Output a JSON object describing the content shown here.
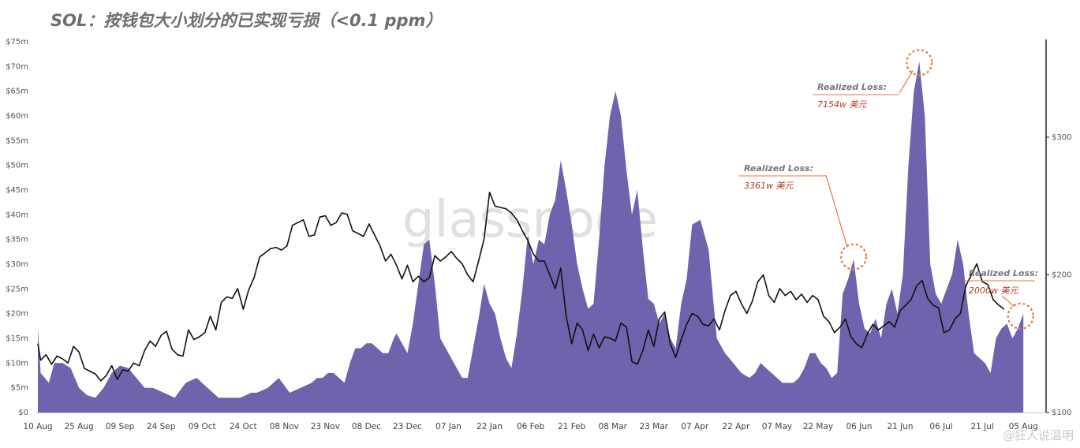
{
  "title": "SOL：按钱包大小划分的已实现亏损（<0.1 ppm）",
  "watermark": "glassnode",
  "corner_watermark": "@狂人说温明",
  "colors": {
    "area": "#6f63ad",
    "line": "#111111",
    "highlight": "#e8793a",
    "annotation_value": "#b03a1e"
  },
  "chart_data": {
    "type": "area",
    "title": "SOL：按钱包大小划分的已实现亏损（<0.1 ppm）",
    "x_tick_labels": [
      "10 Aug",
      "25 Aug",
      "09 Sep",
      "24 Sep",
      "09 Oct",
      "24 Oct",
      "08 Nov",
      "23 Nov",
      "08 Dec",
      "23 Dec",
      "07 Jan",
      "22 Jan",
      "06 Feb",
      "21 Feb",
      "08 Mar",
      "23 Mar",
      "07 Apr",
      "22 Apr",
      "07 May",
      "22 May",
      "06 Jun",
      "21 Jun",
      "06 Jul",
      "21 Jul",
      "05 Aug"
    ],
    "y_left_ticks": [
      "$0",
      "$5m",
      "$10m",
      "$15m",
      "$20m",
      "$25m",
      "$30m",
      "$35m",
      "$40m",
      "$45m",
      "$50m",
      "$55m",
      "$60m",
      "$65m",
      "$70m",
      "$75m"
    ],
    "y_left_range": [
      0,
      75
    ],
    "y_left_unit": "$m",
    "y_right_ticks": [
      "$100",
      "$200",
      "$300"
    ],
    "y_right_range": [
      100,
      300
    ],
    "grid": false,
    "series": [
      {
        "type": "area",
        "axis": "left",
        "day_offset": [
          0,
          1,
          4,
          6,
          9,
          12,
          15,
          18,
          21,
          24,
          27,
          30,
          33,
          36,
          39,
          42,
          46,
          50,
          54,
          58,
          62,
          66,
          70,
          74,
          78,
          80,
          84,
          88,
          92,
          96,
          100,
          102,
          104,
          106,
          108,
          110,
          112,
          114,
          116,
          118,
          120,
          122,
          124,
          126,
          128,
          130,
          131,
          133,
          135,
          137,
          139,
          141,
          143,
          145,
          147,
          149,
          151,
          153,
          155,
          157,
          159,
          161,
          163,
          165,
          167,
          169,
          171,
          173,
          175,
          177,
          179,
          181,
          183,
          185,
          187,
          189,
          191,
          193,
          195,
          197,
          199,
          201,
          203,
          205,
          207,
          209,
          211,
          213,
          215,
          217,
          219,
          221,
          223,
          225,
          227,
          229,
          231,
          233,
          235,
          237,
          239,
          242,
          245,
          248,
          251,
          254,
          257,
          260,
          262,
          264,
          266,
          268,
          270,
          272,
          274,
          276,
          278,
          280,
          282,
          284,
          286,
          288,
          290,
          292,
          294,
          296,
          298,
          300,
          302,
          304,
          306,
          308,
          310,
          312,
          314,
          316,
          318,
          320,
          322,
          324,
          326,
          328,
          330,
          332,
          334,
          336,
          338,
          340,
          342,
          344,
          346,
          348,
          350,
          352,
          354,
          356,
          358,
          360
        ],
        "values": [
          17,
          8,
          6,
          10,
          10,
          9,
          5,
          3.5,
          3,
          5,
          8,
          9.5,
          9,
          7,
          5,
          5,
          4,
          3,
          6,
          7,
          5,
          3,
          3,
          3,
          4,
          4,
          5,
          7,
          4,
          5,
          6,
          7,
          7,
          8,
          8,
          7,
          6,
          10,
          13,
          13,
          14,
          14,
          13,
          12,
          12,
          15,
          16,
          14,
          12,
          18,
          26,
          34,
          35,
          26,
          15,
          13,
          11,
          9,
          7,
          7,
          13,
          19,
          26,
          22,
          20,
          15,
          11,
          9,
          16,
          25,
          36,
          30,
          35,
          34,
          40,
          43,
          51,
          45,
          38,
          30,
          25,
          21,
          22,
          35,
          50,
          60,
          65,
          60,
          49,
          40,
          45,
          33,
          23,
          22,
          18,
          20,
          15,
          13,
          22,
          27,
          38,
          39,
          33,
          15,
          12,
          10,
          8,
          7,
          8,
          10,
          9,
          8,
          7,
          6,
          6,
          6,
          7,
          9,
          12,
          12,
          10,
          9,
          7,
          8,
          24,
          27,
          31,
          22,
          17,
          16,
          19,
          15,
          22,
          25,
          20,
          28,
          50,
          65,
          71,
          60,
          30,
          24,
          22,
          25,
          28,
          35,
          30,
          20,
          12,
          11,
          10,
          8,
          15,
          17,
          18,
          15,
          17,
          20,
          19,
          16,
          10
        ]
      },
      {
        "type": "line",
        "axis": "right",
        "day_offset": [
          0,
          1,
          3,
          5,
          7,
          9,
          11,
          13,
          15,
          17,
          19,
          21,
          23,
          25,
          27,
          29,
          31,
          33,
          35,
          37,
          39,
          41,
          43,
          45,
          47,
          49,
          51,
          53,
          55,
          57,
          59,
          61,
          63,
          65,
          67,
          69,
          71,
          73,
          75,
          77,
          79,
          81,
          83,
          85,
          87,
          89,
          91,
          93,
          95,
          97,
          99,
          101,
          103,
          105,
          107,
          109,
          111,
          113,
          115,
          117,
          119,
          121,
          123,
          125,
          127,
          129,
          131,
          133,
          135,
          137,
          139,
          141,
          143,
          145,
          147,
          149,
          151,
          153,
          155,
          157,
          159,
          161,
          163,
          165,
          167,
          169,
          171,
          173,
          175,
          177,
          179,
          181,
          183,
          185,
          187,
          189,
          191,
          193,
          195,
          197,
          199,
          201,
          203,
          205,
          207,
          209,
          211,
          213,
          215,
          217,
          219,
          221,
          223,
          225,
          227,
          229,
          231,
          233,
          235,
          237,
          239,
          241,
          243,
          245,
          247,
          249,
          251,
          253,
          255,
          257,
          259,
          261,
          263,
          265,
          267,
          269,
          271,
          273,
          275,
          277,
          279,
          281,
          283,
          285,
          287,
          289,
          291,
          293,
          295,
          297,
          299,
          301,
          303,
          305,
          307,
          309,
          311,
          313,
          315,
          317,
          319,
          321,
          323,
          325,
          327,
          329,
          331,
          333,
          335,
          337,
          339,
          341,
          343,
          345,
          347,
          349,
          351,
          353,
          355,
          357,
          359,
          361,
          363,
          365
        ],
        "values": [
          150,
          138,
          142,
          135,
          141,
          139,
          136,
          148,
          144,
          132,
          130,
          128,
          123,
          127,
          134,
          124,
          131,
          130,
          136,
          134,
          145,
          152,
          148,
          156,
          159,
          146,
          142,
          141,
          160,
          153,
          155,
          158,
          170,
          160,
          180,
          184,
          183,
          190,
          175,
          189,
          198,
          213,
          216,
          219,
          220,
          218,
          221,
          236,
          238,
          240,
          228,
          229,
          242,
          243,
          236,
          238,
          245,
          244,
          232,
          230,
          228,
          237,
          229,
          221,
          210,
          215,
          207,
          197,
          207,
          195,
          199,
          195,
          198,
          214,
          210,
          213,
          217,
          212,
          208,
          200,
          195,
          210,
          226,
          260,
          250,
          249,
          248,
          245,
          240,
          232,
          225,
          215,
          210,
          210,
          200,
          190,
          205,
          170,
          150,
          165,
          160,
          145,
          157,
          147,
          155,
          154,
          152,
          165,
          162,
          137,
          135,
          145,
          160,
          148,
          168,
          173,
          150,
          140,
          153,
          164,
          172,
          170,
          164,
          163,
          168,
          160,
          174,
          185,
          188,
          179,
          172,
          181,
          195,
          200,
          185,
          180,
          190,
          185,
          188,
          182,
          186,
          180,
          185,
          182,
          170,
          166,
          158,
          162,
          168,
          155,
          150,
          147,
          157,
          164,
          160,
          163,
          166,
          162,
          174,
          178,
          182,
          192,
          196,
          183,
          178,
          176,
          158,
          160,
          168,
          172,
          192,
          200,
          208,
          195,
          193,
          182,
          178,
          175
        ]
      }
    ],
    "annotations": [
      {
        "label": "Realized Loss:",
        "value": "7154w 美元"
      },
      {
        "label": "Realized Loss:",
        "value": "3361w 美元"
      },
      {
        "label": "Realized Loss:",
        "value": "2000w 美元"
      }
    ]
  }
}
